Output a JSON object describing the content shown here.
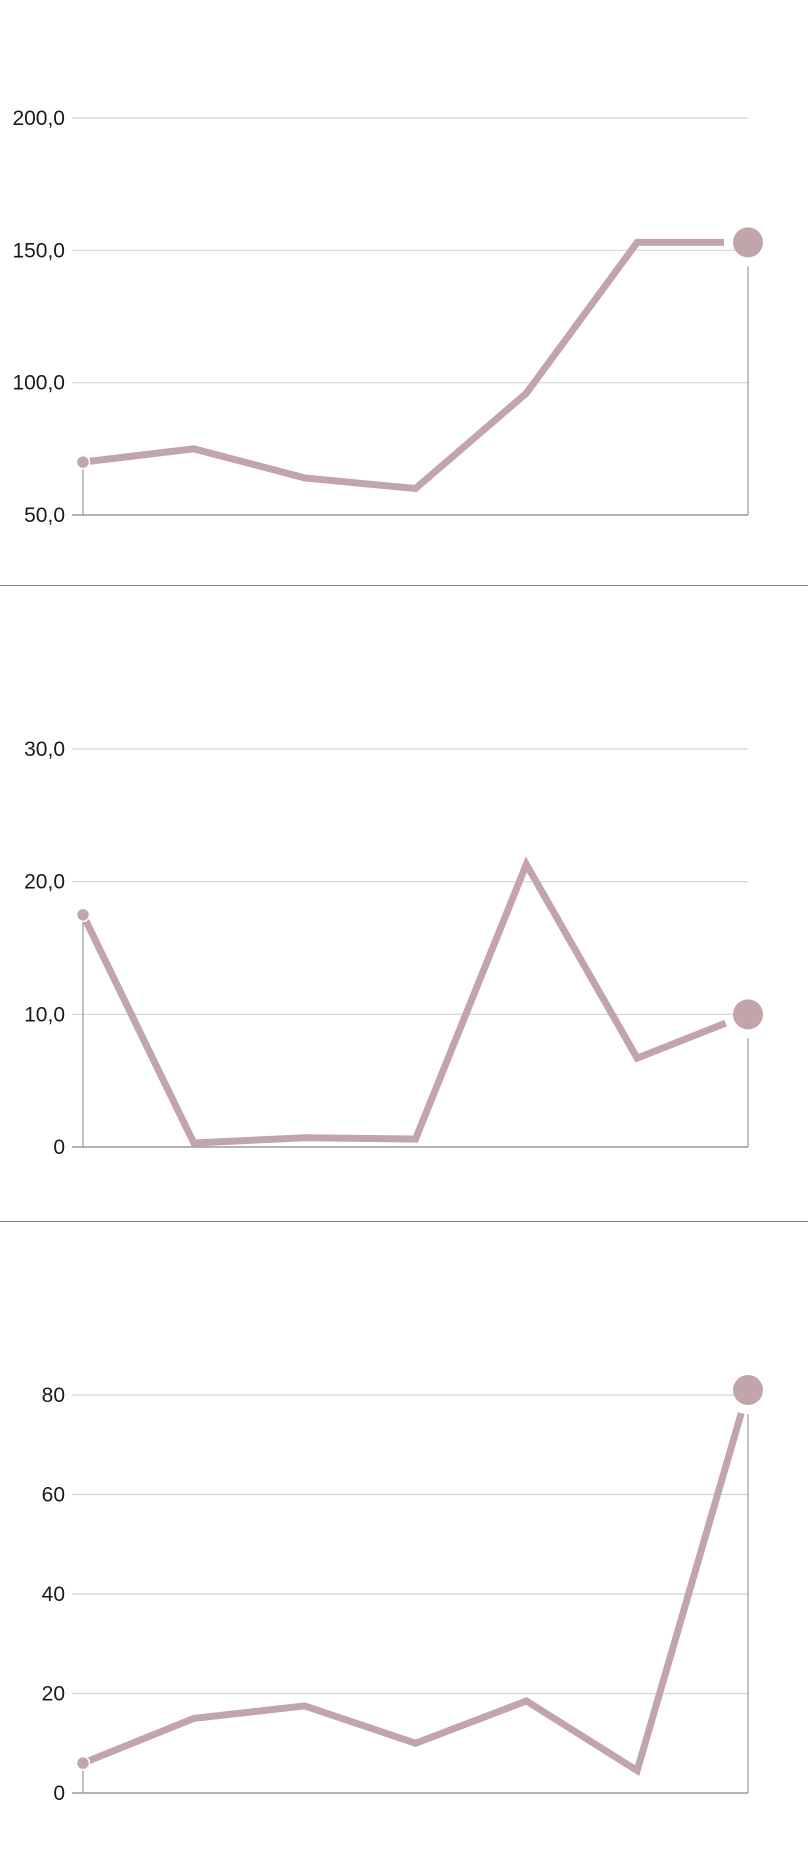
{
  "chart_data": [
    {
      "type": "line",
      "x": [
        1,
        2,
        3,
        4,
        5,
        6,
        7
      ],
      "series": [
        {
          "values": [
            70,
            75,
            64,
            60,
            96,
            153,
            153
          ]
        }
      ],
      "ylim": [
        50,
        200
      ],
      "yticks": [
        50,
        100,
        150,
        200
      ],
      "ytick_labels": [
        "50,0",
        "100,0",
        "150,0",
        "200,0"
      ],
      "grid": true,
      "color": "#c2a5aa"
    },
    {
      "type": "line",
      "x": [
        1,
        2,
        3,
        4,
        5,
        6,
        7
      ],
      "series": [
        {
          "values": [
            17.5,
            0.3,
            0.7,
            0.6,
            21.3,
            6.7,
            10
          ]
        }
      ],
      "ylim": [
        0,
        30
      ],
      "yticks": [
        0,
        10,
        20,
        30
      ],
      "ytick_labels": [
        "0",
        "10,0",
        "20,0",
        "30,0"
      ],
      "grid": true,
      "color": "#c2a5aa"
    },
    {
      "type": "line",
      "x": [
        1,
        2,
        3,
        4,
        5,
        6,
        7
      ],
      "series": [
        {
          "values": [
            6,
            15,
            17.5,
            10,
            18.5,
            4.5,
            81
          ]
        }
      ],
      "ylim": [
        0,
        80
      ],
      "yticks": [
        0,
        20,
        40,
        60,
        80
      ],
      "ytick_labels": [
        "0",
        "20",
        "40",
        "60",
        "80"
      ],
      "grid": true,
      "color": "#c2a5aa"
    }
  ]
}
